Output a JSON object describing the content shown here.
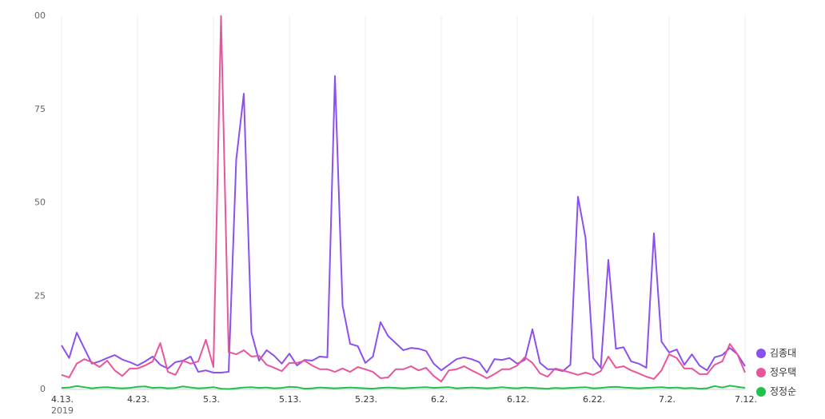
{
  "chart_data": {
    "type": "line",
    "categories": [
      "4.13.",
      null,
      null,
      null,
      null,
      null,
      null,
      null,
      null,
      null,
      "4.23.",
      null,
      null,
      null,
      null,
      null,
      null,
      null,
      null,
      null,
      "5.3.",
      null,
      null,
      null,
      null,
      null,
      null,
      null,
      null,
      null,
      "5.13.",
      null,
      null,
      null,
      null,
      null,
      null,
      null,
      null,
      null,
      "5.23.",
      null,
      null,
      null,
      null,
      null,
      null,
      null,
      null,
      null,
      "6.2.",
      null,
      null,
      null,
      null,
      null,
      null,
      null,
      null,
      null,
      "6.12.",
      null,
      null,
      null,
      null,
      null,
      null,
      null,
      null,
      null,
      "6.22.",
      null,
      null,
      null,
      null,
      null,
      null,
      null,
      null,
      null,
      "7.2.",
      null,
      null,
      null,
      null,
      null,
      null,
      null,
      null,
      null,
      "7.12."
    ],
    "year_label": "2019",
    "ylim": [
      0,
      100
    ],
    "yticks": [
      0,
      25,
      50,
      75,
      {
        "value": 100,
        "label": "00"
      }
    ],
    "grid": true,
    "legend": "right",
    "series": [
      {
        "name": "김종대",
        "color": "#8c50f0",
        "values": [
          11.8,
          8.4,
          15.2,
          11,
          6.9,
          7.5,
          8.4,
          9.2,
          8,
          7.3,
          6.4,
          7.5,
          8.8,
          6.6,
          5.6,
          7.3,
          7.7,
          8.8,
          4.7,
          5.1,
          4.5,
          4.5,
          4.7,
          61.5,
          79.2,
          15.2,
          7.7,
          10.5,
          9,
          6.9,
          9.6,
          6.4,
          7.9,
          7.7,
          8.8,
          8.6,
          83.9,
          22.5,
          12.2,
          11.6,
          7.1,
          8.8,
          18,
          14.3,
          12.4,
          10.5,
          11.1,
          10.9,
          10.3,
          6.9,
          5.1,
          6.6,
          8.1,
          8.6,
          8.1,
          7.3,
          4.5,
          8.1,
          7.9,
          8.4,
          6.9,
          7.9,
          16.1,
          7.1,
          5.4,
          5.4,
          4.9,
          6.6,
          51.6,
          40.5,
          8.4,
          5.8,
          34.7,
          10.9,
          11.3,
          7.5,
          6.9,
          5.8,
          41.8,
          12.8,
          9.9,
          10.7,
          6.6,
          9.4,
          6.4,
          5.1,
          8.6,
          9.2,
          11.1,
          9.4,
          6.2
        ]
      },
      {
        "name": "정우택",
        "color": "#e8559b",
        "values": [
          3.9,
          3.2,
          6.9,
          8.1,
          7.3,
          6,
          7.7,
          5.1,
          3.6,
          5.6,
          5.6,
          6.4,
          7.5,
          12.4,
          4.7,
          3.9,
          7.7,
          6.9,
          7.5,
          13.3,
          6,
          100,
          10,
          9.4,
          10.5,
          8.8,
          9,
          6.6,
          5.8,
          4.9,
          7.1,
          7.1,
          7.7,
          6.4,
          5.4,
          5.4,
          4.7,
          5.6,
          4.7,
          6,
          5.4,
          4.7,
          3,
          3.2,
          5.4,
          5.4,
          6.2,
          5.1,
          5.8,
          3.6,
          2.1,
          5.1,
          5.4,
          6.2,
          5.1,
          4.1,
          3,
          4.1,
          5.4,
          5.4,
          6.4,
          8.6,
          7.1,
          4.3,
          3.4,
          5.6,
          5.1,
          4.5,
          3.9,
          4.5,
          3.9,
          4.9,
          8.8,
          5.8,
          6.2,
          5.1,
          4.3,
          3.4,
          2.8,
          5.1,
          9.4,
          8.4,
          5.6,
          5.6,
          4.1,
          4.1,
          6.6,
          7.5,
          12.2,
          9.4,
          4.5
        ]
      },
      {
        "name": "정정순",
        "color": "#1fc24a",
        "values": [
          0.4,
          0.5,
          0.9,
          0.6,
          0.3,
          0.5,
          0.6,
          0.4,
          0.3,
          0.4,
          0.7,
          0.8,
          0.4,
          0.5,
          0.3,
          0.4,
          0.8,
          0.5,
          0.3,
          0.4,
          0.6,
          0.2,
          0.1,
          0.3,
          0.5,
          0.6,
          0.4,
          0.5,
          0.3,
          0.4,
          0.7,
          0.6,
          0.2,
          0.3,
          0.5,
          0.4,
          0.3,
          0.4,
          0.5,
          0.4,
          0.3,
          0.2,
          0.4,
          0.5,
          0.4,
          0.3,
          0.4,
          0.5,
          0.6,
          0.4,
          0.5,
          0.6,
          0.3,
          0.4,
          0.5,
          0.4,
          0.3,
          0.4,
          0.6,
          0.4,
          0.3,
          0.5,
          0.4,
          0.3,
          0.2,
          0.4,
          0.3,
          0.4,
          0.5,
          0.6,
          0.3,
          0.4,
          0.6,
          0.7,
          0.5,
          0.4,
          0.3,
          0.4,
          0.5,
          0.6,
          0.4,
          0.5,
          0.3,
          0.4,
          0.2,
          0.3,
          0.9,
          0.5,
          1.0,
          0.7,
          0.4
        ]
      }
    ]
  }
}
